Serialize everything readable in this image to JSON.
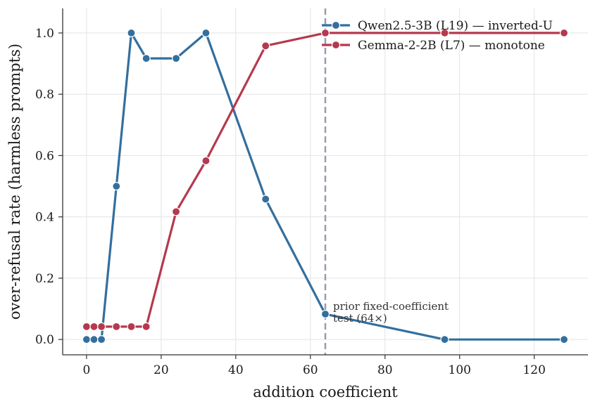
{
  "chart_data": {
    "type": "line",
    "title": "",
    "xlabel": "addition coefficient",
    "ylabel": "over-refusal rate (harmless prompts)",
    "xlim": [
      -6.4,
      134.4
    ],
    "ylim": [
      -0.05,
      1.08
    ],
    "xticks": [
      0,
      20,
      40,
      60,
      80,
      100,
      120
    ],
    "yticks": [
      0.0,
      0.2,
      0.4,
      0.6,
      0.8,
      1.0
    ],
    "xtick_labels": [
      "0",
      "20",
      "40",
      "60",
      "80",
      "100",
      "120"
    ],
    "ytick_labels": [
      "0.0",
      "0.2",
      "0.4",
      "0.6",
      "0.8",
      "1.0"
    ],
    "grid": true,
    "legend_position": "top-right",
    "series": [
      {
        "name": "Qwen2.5-3B (L19) — inverted-U",
        "color": "#336f9e",
        "x": [
          0,
          2,
          4,
          8,
          12,
          16,
          24,
          32,
          48,
          64,
          96,
          128
        ],
        "y": [
          0.0,
          0.0,
          0.0,
          0.5,
          1.0,
          0.917,
          0.917,
          1.0,
          0.458,
          0.083,
          0.0,
          0.0
        ]
      },
      {
        "name": "Gemma-2-2B (L7) — monotone",
        "color": "#b5394e",
        "x": [
          0,
          2,
          4,
          8,
          12,
          16,
          24,
          32,
          48,
          64,
          96,
          128
        ],
        "y": [
          0.042,
          0.042,
          0.042,
          0.042,
          0.042,
          0.042,
          0.417,
          0.583,
          0.958,
          1.0,
          1.0,
          1.0
        ]
      }
    ],
    "reference_line": {
      "axis": "x",
      "value": 64,
      "style": "dashed",
      "color": "#9a9aaf"
    },
    "annotation": {
      "lines": [
        "prior fixed-coefficient",
        "test (64×)"
      ],
      "x": 64,
      "y": 0.083
    }
  }
}
